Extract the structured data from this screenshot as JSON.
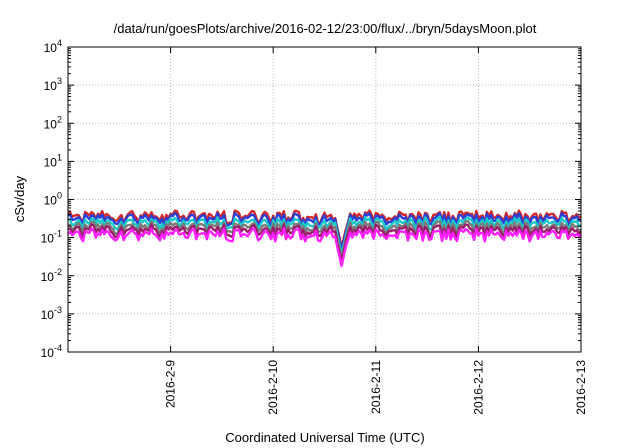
{
  "chart_data": {
    "type": "line",
    "title": "/data/run/goesPlots/archive/2016-02-12/23:00/flux/../bryn/5daysMoon.plot",
    "xlabel": "Coordinated Universal Time (UTC)",
    "ylabel": "cSv/day",
    "y_scale": "log",
    "ylim": [
      0.0001,
      10000
    ],
    "xlim": [
      "2016-02-08",
      "2016-02-13"
    ],
    "x_ticks": [
      "2016-2-9",
      "2016-2-10",
      "2016-2-11",
      "2016-2-12",
      "2016-2-13"
    ],
    "y_ticks": [
      {
        "base": "10",
        "exp": "4"
      },
      {
        "base": "10",
        "exp": "3"
      },
      {
        "base": "10",
        "exp": "2"
      },
      {
        "base": "10",
        "exp": "1"
      },
      {
        "base": "10",
        "exp": "0"
      },
      {
        "base": "10",
        "exp": "-1"
      },
      {
        "base": "10",
        "exp": "-2"
      },
      {
        "base": "10",
        "exp": "-3"
      },
      {
        "base": "10",
        "exp": "-4"
      }
    ],
    "grid": true,
    "series": [
      {
        "color": "#d62728",
        "level": 0.42
      },
      {
        "color": "#2a3fd8",
        "level": 0.36
      },
      {
        "color": "#17c9c9",
        "level": 0.28
      },
      {
        "color": "#7a7a7a",
        "level": 0.22
      },
      {
        "color": "#9a1f6a",
        "level": 0.18
      },
      {
        "color": "#ff1fff",
        "level": 0.14
      }
    ],
    "dip": {
      "x": "2016-02-10T16:00",
      "min_value": 0.018
    }
  }
}
